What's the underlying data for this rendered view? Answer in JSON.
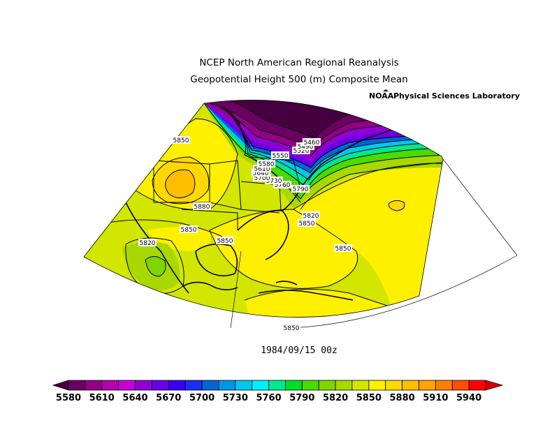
{
  "header": {
    "title_line1": "NCEP North American Regional Reanalysis",
    "title_line2": "Geopotential Height 500 (m) Composite Mean",
    "credit_logo": "NOAA",
    "credit_text": "Physical Sciences Laboratory"
  },
  "map": {
    "timestamp": "1984/09/15 00z",
    "contour_labels": [
      "5850",
      "5880",
      "5850",
      "5820",
      "5850",
      "5850",
      "5850",
      "5850",
      "5820",
      "5790",
      "5760",
      "5730",
      "5700",
      "5640",
      "5610",
      "5580",
      "5550",
      "5520",
      "5490",
      "5460"
    ]
  },
  "colorbar": {
    "tick_labels": [
      "5580",
      "5610",
      "5640",
      "5670",
      "5700",
      "5730",
      "5760",
      "5790",
      "5820",
      "5850",
      "5880",
      "5910",
      "5940"
    ],
    "colors": [
      "#47003f",
      "#6b0062",
      "#930086",
      "#b400b0",
      "#c600d6",
      "#9000d2",
      "#6a00e6",
      "#3a00f2",
      "#1b2ff0",
      "#0066d8",
      "#0096e8",
      "#00c8ee",
      "#00f0ff",
      "#00e890",
      "#00dc2c",
      "#48dc00",
      "#7ed600",
      "#a8d800",
      "#d2e600",
      "#fff000",
      "#ffd800",
      "#ffbe00",
      "#ffa400",
      "#ff8000",
      "#ff4e00",
      "#ff0000",
      "#d80000"
    ]
  }
}
